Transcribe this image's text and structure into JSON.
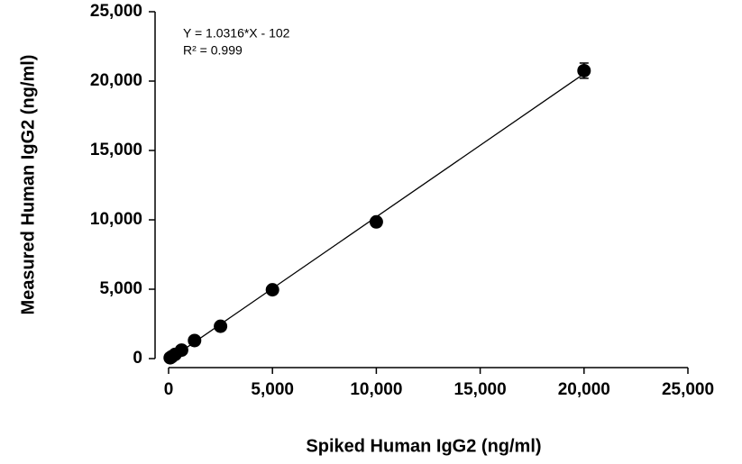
{
  "chart_data": {
    "type": "scatter",
    "title": null,
    "x_label": "Spiked Human IgG2 (ng/ml)",
    "y_label": "Measured Human IgG2 (ng/ml)",
    "annotations": [
      "Y = 1.0316*X - 102",
      "R² = 0.999"
    ],
    "x": [
      78,
      156,
      312,
      625,
      1250,
      2500,
      5000,
      10000,
      20000
    ],
    "series": [
      {
        "name": null,
        "color": "#000000",
        "values": [
          60,
          140,
          300,
          610,
          1300,
          2330,
          4960,
          9850,
          20750
        ],
        "errors": [
          null,
          null,
          null,
          null,
          null,
          null,
          null,
          null,
          550
        ]
      }
    ],
    "fit_line": {
      "x": [
        0,
        20000
      ],
      "y": [
        -102,
        20530
      ]
    },
    "xlim": [
      0,
      25000
    ],
    "ylim": [
      0,
      25000
    ],
    "xticks": [
      0,
      {
        "value": 5000,
        "label": "5,000"
      },
      {
        "value": 10000,
        "label": "10,000"
      },
      {
        "value": 15000,
        "label": "15,000"
      },
      {
        "value": 20000,
        "label": "20,000"
      },
      {
        "value": 25000,
        "label": "25,000"
      }
    ],
    "yticks": [
      0,
      {
        "value": 5000,
        "label": "5,000"
      },
      {
        "value": 10000,
        "label": "10,000"
      },
      {
        "value": 15000,
        "label": "15,000"
      },
      {
        "value": 20000,
        "label": "20,000"
      },
      {
        "value": 25000,
        "label": "25,000"
      }
    ],
    "grid": false
  }
}
